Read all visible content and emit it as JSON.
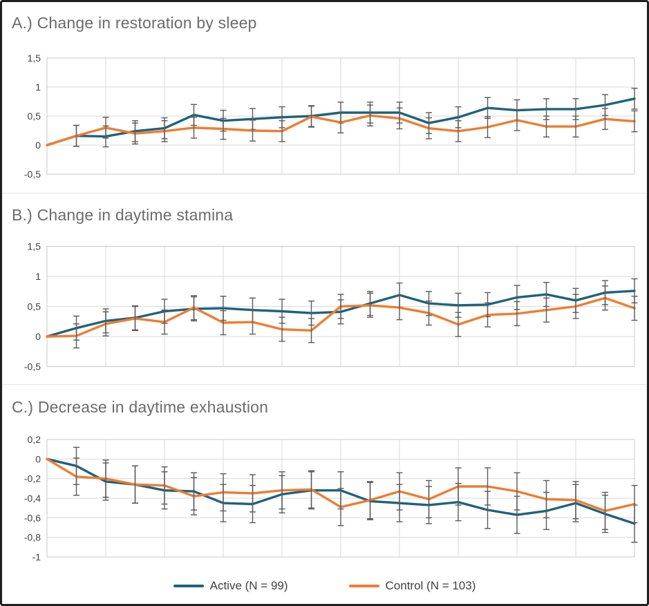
{
  "legend": {
    "items": [
      {
        "label": "Active (N = 99)",
        "color": "#1F627D"
      },
      {
        "label": "Control (N = 103)",
        "color": "#ED7D31"
      }
    ]
  },
  "style": {
    "gridline_color": "#D9D9D9",
    "plot_border_color": "#C9C9C9",
    "error_bar_color": "#595959",
    "tick_label_color": "#3F3F3F",
    "title_color": "#6B6B6B"
  },
  "chart_data": [
    {
      "type": "line",
      "title": "A.) Change in restoration by sleep",
      "x_count": 21,
      "x_tick_labels": [],
      "ylim": [
        -0.5,
        1.5
      ],
      "y_tick_values": [
        1.5,
        1,
        0.5,
        0,
        -0.5
      ],
      "y_tick_labels": [
        "1,5",
        "1",
        "0,5",
        "0",
        "-0,5"
      ],
      "grid": true,
      "legend_position": "none",
      "series": [
        {
          "name": "Active (N = 99)",
          "color": "#1F627D",
          "error_bar": 0.18,
          "values": [
            0,
            0.16,
            0.15,
            0.24,
            0.29,
            0.52,
            0.42,
            0.45,
            0.48,
            0.5,
            0.56,
            0.56,
            0.56,
            0.38,
            0.48,
            0.64,
            0.6,
            0.62,
            0.62,
            0.69,
            0.8
          ]
        },
        {
          "name": "Control (N = 103)",
          "color": "#ED7D31",
          "error_bar": 0.18,
          "values": [
            0,
            0.16,
            0.3,
            0.2,
            0.24,
            0.3,
            0.28,
            0.25,
            0.24,
            0.49,
            0.39,
            0.51,
            0.46,
            0.29,
            0.24,
            0.31,
            0.43,
            0.32,
            0.32,
            0.45,
            0.41
          ]
        }
      ]
    },
    {
      "type": "line",
      "title": "B.) Change in daytime stamina",
      "x_count": 21,
      "x_tick_labels": [],
      "ylim": [
        -0.5,
        1.5
      ],
      "y_tick_values": [
        1.5,
        1,
        0.5,
        0,
        -0.5
      ],
      "y_tick_labels": [
        "1,5",
        "1",
        "0,5",
        "0",
        "-0,5"
      ],
      "grid": true,
      "legend_position": "none",
      "series": [
        {
          "name": "Active (N = 99)",
          "color": "#1F627D",
          "error_bar": 0.2,
          "values": [
            0,
            0.14,
            0.26,
            0.31,
            0.42,
            0.46,
            0.47,
            0.44,
            0.42,
            0.39,
            0.41,
            0.55,
            0.69,
            0.55,
            0.52,
            0.53,
            0.65,
            0.7,
            0.6,
            0.73,
            0.76
          ]
        },
        {
          "name": "Control (N = 103)",
          "color": "#ED7D31",
          "error_bar": 0.2,
          "values": [
            0,
            0.01,
            0.21,
            0.3,
            0.24,
            0.48,
            0.23,
            0.24,
            0.12,
            0.1,
            0.5,
            0.52,
            0.48,
            0.39,
            0.2,
            0.36,
            0.38,
            0.44,
            0.5,
            0.64,
            0.47
          ]
        }
      ]
    },
    {
      "type": "line",
      "title": "C.) Decrease in daytime exhaustion",
      "x_count": 21,
      "x_tick_labels": [],
      "ylim": [
        -1,
        0.2
      ],
      "y_tick_values": [
        0.2,
        0,
        -0.2,
        -0.4,
        -0.6,
        -0.8,
        -1
      ],
      "y_tick_labels": [
        "0,2",
        "0",
        "-0,2",
        "-0,4",
        "-0,6",
        "-0,8",
        "-1"
      ],
      "grid": true,
      "legend_position": "bottom",
      "series": [
        {
          "name": "Active (N = 99)",
          "color": "#1F627D",
          "error_bar": 0.19,
          "values": [
            0,
            -0.07,
            -0.23,
            -0.26,
            -0.32,
            -0.33,
            -0.45,
            -0.46,
            -0.36,
            -0.32,
            -0.32,
            -0.43,
            -0.45,
            -0.47,
            -0.44,
            -0.52,
            -0.57,
            -0.53,
            -0.45,
            -0.56,
            -0.66
          ]
        },
        {
          "name": "Control (N = 103)",
          "color": "#ED7D31",
          "error_bar": 0.19,
          "values": [
            0,
            -0.18,
            -0.2,
            -0.26,
            -0.27,
            -0.38,
            -0.34,
            -0.35,
            -0.32,
            -0.31,
            -0.49,
            -0.42,
            -0.33,
            -0.41,
            -0.28,
            -0.28,
            -0.33,
            -0.41,
            -0.42,
            -0.53,
            -0.46
          ]
        }
      ]
    }
  ]
}
